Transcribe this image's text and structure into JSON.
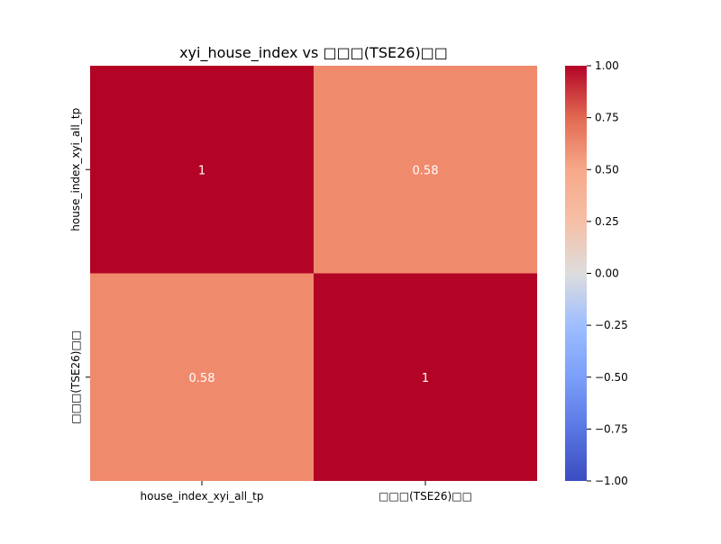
{
  "chart_data": {
    "type": "heatmap",
    "title": "xyi_house_index vs □□□(TSE26)□□",
    "x_labels": [
      "house_index_xyi_all_tp",
      "□□□(TSE26)□□"
    ],
    "y_labels": [
      "house_index_xyi_all_tp",
      "□□□(TSE26)□□"
    ],
    "values": [
      [
        1,
        0.58
      ],
      [
        0.58,
        1
      ]
    ],
    "annotations": [
      [
        "1",
        "0.58"
      ],
      [
        "0.58",
        "1"
      ]
    ],
    "colorbar": {
      "vmin": -1.0,
      "vmax": 1.0,
      "ticks": [
        "1.00",
        "0.75",
        "0.50",
        "0.25",
        "0.00",
        "−0.25",
        "−0.50",
        "−0.75",
        "−1.00"
      ],
      "colormap": "coolwarm"
    },
    "colors": {
      "high": "#b40426",
      "mid": "#dddddd",
      "low": "#3b4cc0",
      "cell_058": "#f08a6c"
    }
  }
}
